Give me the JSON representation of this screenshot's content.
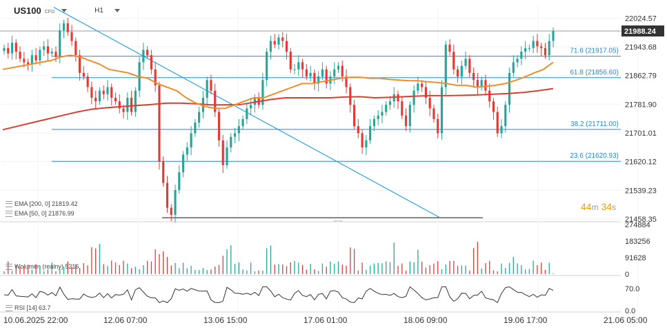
{
  "header": {
    "symbol": "US100",
    "instrument_type": "CFD",
    "timeframe": "H1"
  },
  "timer": {
    "minutes": "44",
    "m": "m",
    "seconds": "34",
    "s": "s"
  },
  "indicators": {
    "ema200": {
      "label": "EMA [200, 0]",
      "value": "21819.42",
      "color": "#e03c31"
    },
    "ema50": {
      "label": "EMA [50, 0]",
      "value": "21876.99",
      "color": "#f28c28"
    },
    "volume": {
      "label": "Wolumen (realny)",
      "value": "5216"
    },
    "rsi": {
      "label": "RSI [14]",
      "value": "63.7"
    }
  },
  "colors": {
    "up": "#26a69a",
    "down": "#e53935",
    "fib": "#1e88e5",
    "last_price": "#333333"
  },
  "chart_data": [
    {
      "type": "candlestick",
      "title": "",
      "ylim": [
        21458.35,
        22060
      ],
      "x_tick_labels": [
        "10.06.2025 22:00",
        "12.06 07:00",
        "13.06 15:00",
        "17.06 01:00",
        "18.06 09:00",
        "19.06 17:00",
        "21.06 05:00"
      ],
      "y_tick_labels": [
        "22024.57",
        "21943.68",
        "21862.79",
        "21781.90",
        "21701.01",
        "21620.12",
        "21539.23",
        "21458.35"
      ],
      "last_price": "21988.24",
      "fibonacci_levels": [
        {
          "label": "71.6 (21917.05)",
          "value": 21917.05
        },
        {
          "label": "61.8 (21856.60)",
          "value": 21856.6
        },
        {
          "label": "38.2 (21711.00)",
          "value": 21711.0
        },
        {
          "label": "23.6 (21620.93)",
          "value": 21620.93
        }
      ],
      "support_level": 21462,
      "candles_close_path": [
        21940,
        21925,
        21955,
        21930,
        21910,
        21900,
        21895,
        21920,
        21905,
        21935,
        21945,
        21925,
        21930,
        21915,
        21990,
        22010,
        21985,
        21960,
        21920,
        21870,
        21860,
        21830,
        21800,
        21790,
        21820,
        21810,
        21830,
        21800,
        21790,
        21770,
        21760,
        21800,
        21760,
        21820,
        21900,
        21935,
        21920,
        21880,
        21835,
        21620,
        21560,
        21490,
        21470,
        21540,
        21590,
        21640,
        21660,
        21700,
        21730,
        21760,
        21800,
        21850,
        21820,
        21760,
        21680,
        21610,
        21660,
        21690,
        21700,
        21720,
        21740,
        21770,
        21780,
        21800,
        21780,
        21850,
        21930,
        21960,
        21950,
        21970,
        21960,
        21930,
        21880,
        21880,
        21900,
        21880,
        21860,
        21870,
        21840,
        21860,
        21880,
        21840,
        21860,
        21880,
        21890,
        21860,
        21830,
        21780,
        21720,
        21700,
        21660,
        21680,
        21720,
        21740,
        21750,
        21760,
        21780,
        21790,
        21810,
        21790,
        21750,
        21720,
        21780,
        21820,
        21840,
        21830,
        21800,
        21770,
        21740,
        21700,
        21830,
        21950,
        21930,
        21880,
        21860,
        21890,
        21910,
        21870,
        21850,
        21830,
        21850,
        21820,
        21790,
        21760,
        21700,
        21720,
        21780,
        21870,
        21900,
        21910,
        21930,
        21940,
        21940,
        21960,
        21945,
        21940,
        21920,
        21960,
        21988.24
      ],
      "ema50_path": [
        21880,
        21885,
        21890,
        21895,
        21900,
        21905,
        21915,
        21920,
        21915,
        21905,
        21895,
        21880,
        21875,
        21870,
        21860,
        21855,
        21840,
        21830,
        21820,
        21800,
        21785,
        21775,
        21770,
        21770,
        21780,
        21790,
        21800,
        21800,
        21810,
        21820,
        21830,
        21840,
        21840,
        21845,
        21850,
        21855,
        21858,
        21858,
        21855,
        21855,
        21852,
        21850,
        21848,
        21848,
        21845,
        21843,
        21840,
        21835,
        21835,
        21830,
        21832,
        21835,
        21840,
        21848,
        21858,
        21870,
        21880,
        21900
      ],
      "ema200_path": [
        21710,
        21720,
        21730,
        21740,
        21750,
        21760,
        21768,
        21772,
        21775,
        21778,
        21781,
        21785,
        21785,
        21783,
        21780,
        21780,
        21781,
        21788,
        21795,
        21800,
        21800,
        21800,
        21800,
        21802,
        21803,
        21800,
        21801,
        21803,
        21805,
        21806,
        21806,
        21807,
        21808,
        21810,
        21812,
        21815,
        21820,
        21826
      ],
      "volume": {
        "ylim": [
          0,
          274884
        ],
        "tick_labels": [
          "274884",
          "183256",
          "91628",
          "0"
        ],
        "current": 5216
      },
      "rsi": {
        "ylim": [
          0,
          100
        ],
        "tick_labels": [
          "70.0",
          "0.0"
        ],
        "current": 63.7
      }
    }
  ]
}
